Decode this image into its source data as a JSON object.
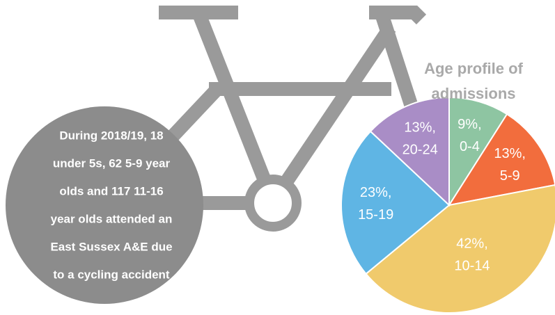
{
  "chart_data": {
    "type": "pie",
    "title": [
      "Age profile of",
      "admissions"
    ],
    "annotation": [
      "During 2018/19, 18",
      "under 5s, 62 5-9 year",
      "olds and 117 11-16",
      "year olds attended an",
      "East Sussex A&E due",
      "to a cycling accident"
    ],
    "categories": [
      "0-4",
      "5-9",
      "10-14",
      "15-19",
      "20-24"
    ],
    "values": [
      9,
      13,
      42,
      23,
      13
    ],
    "value_labels": [
      "9%,",
      "13%,",
      "42%,",
      "23%,",
      "13%,"
    ],
    "colors": [
      "#8ec5a2",
      "#f26d3d",
      "#f0ca6c",
      "#5fb5e4",
      "#a98dc6"
    ]
  }
}
